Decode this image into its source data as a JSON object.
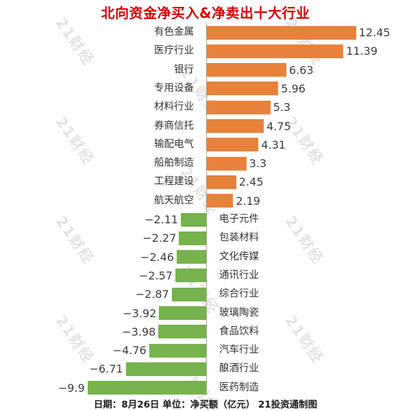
{
  "title": {
    "text": "北向资金净买入&净卖出十大行业",
    "color": "#d40000"
  },
  "chart_data": {
    "type": "bar",
    "orientation": "horizontal",
    "title": "北向资金净买入&净卖出十大行业",
    "xlabel": "净买额（亿元）",
    "ylabel": "",
    "legend": null,
    "grid": false,
    "baseline": 0,
    "categories": [
      "有色金属",
      "医疗行业",
      "银行",
      "专用设备",
      "材料行业",
      "券商信托",
      "输配电气",
      "船舶制造",
      "工程建设",
      "航天航空",
      "电子元件",
      "包装材料",
      "文化传媒",
      "通讯行业",
      "综合行业",
      "玻璃陶瓷",
      "食品饮料",
      "汽车行业",
      "酿酒行业",
      "医药制造"
    ],
    "values": [
      12.45,
      11.39,
      6.63,
      5.96,
      5.3,
      4.75,
      4.31,
      3.3,
      2.45,
      2.19,
      -2.11,
      -2.27,
      -2.46,
      -2.57,
      -2.87,
      -3.92,
      -3.98,
      -4.76,
      -6.71,
      -9.9
    ],
    "positive_color": "#e8823a",
    "negative_color": "#77b34d",
    "axis_line_color": "#9e9e9e",
    "value_text_color": "#3d3d3d",
    "category_text_color": "#333333"
  },
  "footer": {
    "text": "日期：8月26日 单位：净买额（亿元） 21投资通制图"
  },
  "watermark": {
    "text": "21财经",
    "color": "#e4e4e4"
  }
}
